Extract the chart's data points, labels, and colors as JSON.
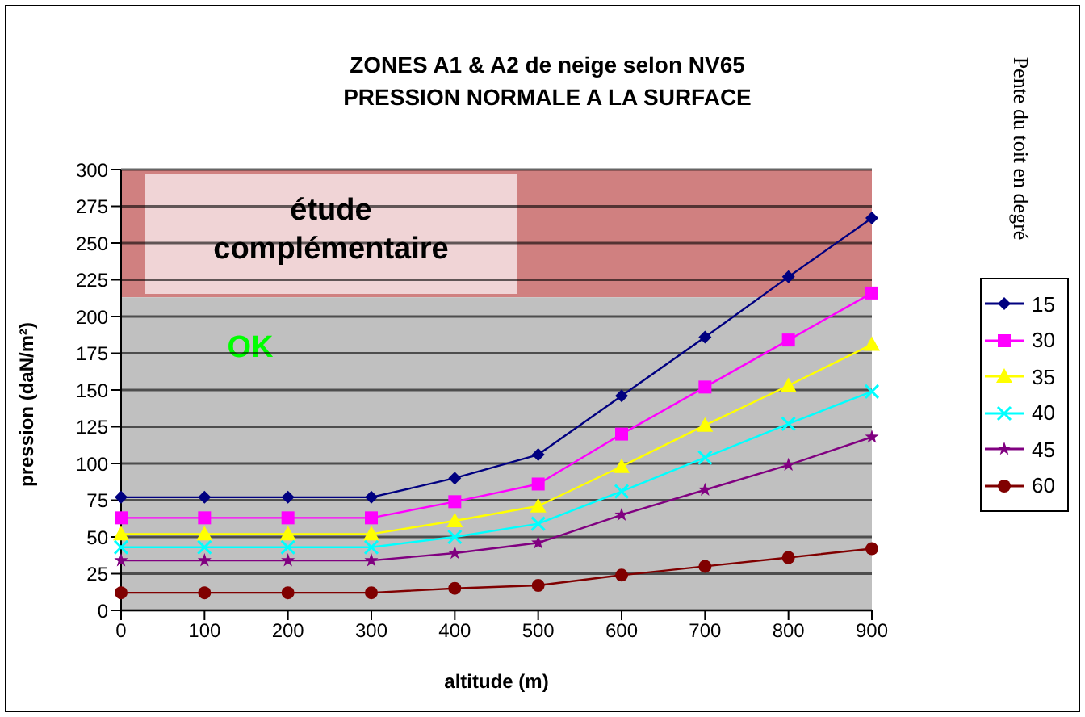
{
  "chart_data": {
    "type": "line",
    "title": "ZONES A1 & A2 de neige selon NV65",
    "subtitle": "PRESSION NORMALE A LA SURFACE",
    "xlabel": "altitude (m)",
    "ylabel": "pression (daN/m²)",
    "legend_title": "Pente du toit en degré",
    "categories": [
      "0",
      "100",
      "200",
      "300",
      "400",
      "500",
      "600",
      "700",
      "800",
      "900"
    ],
    "series": [
      {
        "name": "15",
        "color": "#000080",
        "marker": "diamond",
        "values": [
          77,
          77,
          77,
          77,
          90,
          106,
          146,
          186,
          227,
          267
        ]
      },
      {
        "name": "30",
        "color": "#ff00ff",
        "marker": "square",
        "values": [
          63,
          63,
          63,
          63,
          74,
          86,
          120,
          152,
          184,
          216
        ]
      },
      {
        "name": "35",
        "color": "#ffff00",
        "marker": "triangle",
        "values": [
          52,
          52,
          52,
          52,
          61,
          71,
          98,
          126,
          153,
          181
        ]
      },
      {
        "name": "40",
        "color": "#00ffff",
        "marker": "cross",
        "values": [
          43,
          43,
          43,
          43,
          50,
          59,
          81,
          104,
          127,
          149
        ]
      },
      {
        "name": "45",
        "color": "#800080",
        "marker": "star",
        "values": [
          34,
          34,
          34,
          34,
          39,
          46,
          65,
          82,
          99,
          118
        ]
      },
      {
        "name": "60",
        "color": "#800000",
        "marker": "circle",
        "values": [
          12,
          12,
          12,
          12,
          15,
          17,
          24,
          30,
          36,
          42
        ]
      }
    ],
    "ylim": [
      0,
      300
    ],
    "yticks": [
      0,
      25,
      50,
      75,
      100,
      125,
      150,
      175,
      200,
      225,
      250,
      275,
      300
    ],
    "bands": [
      {
        "axis": "y",
        "from": 213,
        "to": 300,
        "label": "étude complémentaire",
        "color": "#d08080"
      },
      {
        "axis": "y",
        "from": 0,
        "to": 213,
        "label": "OK",
        "color": "#c0c0c0"
      }
    ],
    "grid": "y",
    "legend": "right"
  }
}
